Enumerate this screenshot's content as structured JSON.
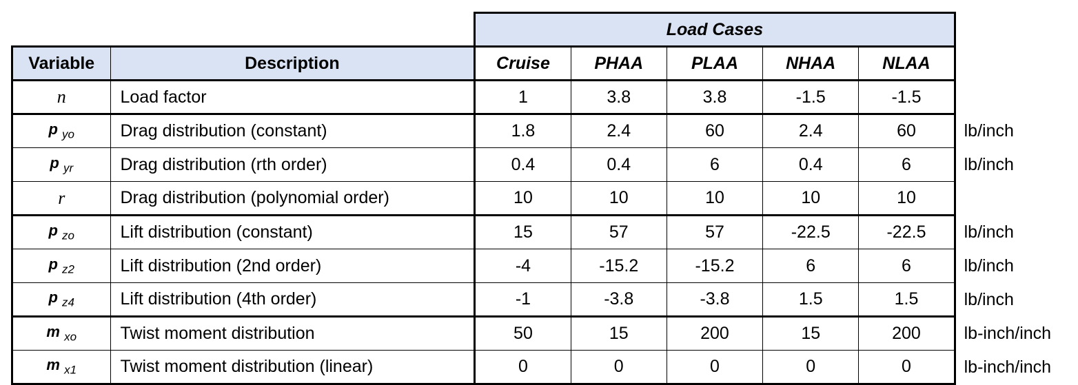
{
  "group_header": "Load Cases",
  "columns": {
    "variable": "Variable",
    "description": "Description",
    "cases": [
      "Cruise",
      "PHAA",
      "PLAA",
      "NHAA",
      "NLAA"
    ]
  },
  "rows": [
    {
      "sym": "n",
      "sub": "",
      "style": "serif",
      "description": "Load factor",
      "values": [
        "1",
        "3.8",
        "3.8",
        "-1.5",
        "-1.5"
      ],
      "unit": ""
    },
    {
      "sym": "p",
      "sub": "yo",
      "style": "sym",
      "description": "Drag distribution (constant)",
      "values": [
        "1.8",
        "2.4",
        "60",
        "2.4",
        "60"
      ],
      "unit": "lb/inch"
    },
    {
      "sym": "p",
      "sub": "yr",
      "style": "sym",
      "description": "Drag distribution (rth order)",
      "values": [
        "0.4",
        "0.4",
        "6",
        "0.4",
        "6"
      ],
      "unit": "lb/inch"
    },
    {
      "sym": "r",
      "sub": "",
      "style": "serif",
      "description": "Drag distribution (polynomial order)",
      "values": [
        "10",
        "10",
        "10",
        "10",
        "10"
      ],
      "unit": ""
    },
    {
      "sym": "p",
      "sub": "zo",
      "style": "sym",
      "description": "Lift distribution (constant)",
      "values": [
        "15",
        "57",
        "57",
        "-22.5",
        "-22.5"
      ],
      "unit": "lb/inch"
    },
    {
      "sym": "p",
      "sub": "z2",
      "style": "sym",
      "description": "Lift distribution (2nd order)",
      "values": [
        "-4",
        "-15.2",
        "-15.2",
        "6",
        "6"
      ],
      "unit": "lb/inch"
    },
    {
      "sym": "p",
      "sub": "z4",
      "style": "sym",
      "description": "Lift distribution (4th order)",
      "values": [
        "-1",
        "-3.8",
        "-3.8",
        "1.5",
        "1.5"
      ],
      "unit": "lb/inch"
    },
    {
      "sym": "m",
      "sub": "xo",
      "style": "sym",
      "description": "Twist moment distribution",
      "values": [
        "50",
        "15",
        "200",
        "15",
        "200"
      ],
      "unit": "lb-inch/inch"
    },
    {
      "sym": "m",
      "sub": "x1",
      "style": "sym",
      "description": "Twist moment distribution (linear)",
      "values": [
        "0",
        "0",
        "0",
        "0",
        "0"
      ],
      "unit": "lb-inch/inch"
    }
  ]
}
